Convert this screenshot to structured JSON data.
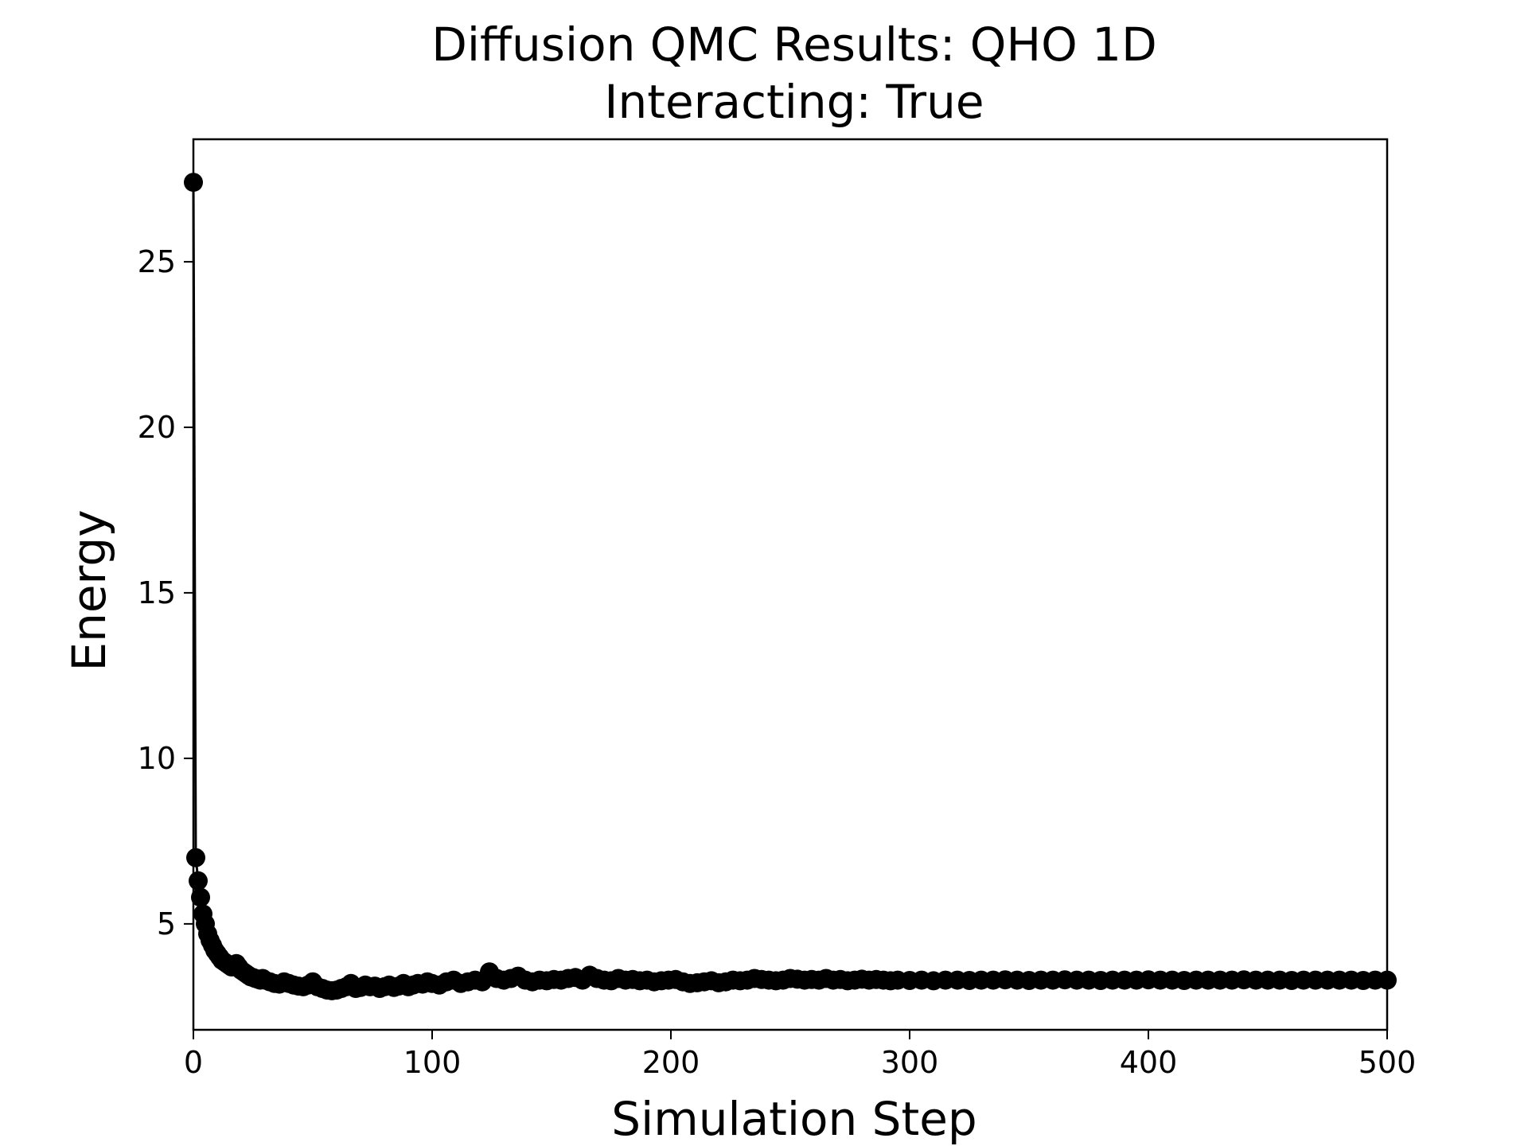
{
  "chart_data": {
    "type": "line",
    "title": "Diffusion QMC Results: QHO 1D",
    "subtitle": "Interacting: True",
    "xlabel": "Simulation Step",
    "ylabel": "Energy",
    "xlim": [
      0,
      500
    ],
    "ylim": [
      1.8,
      28.7
    ],
    "xticks": [
      0,
      100,
      200,
      300,
      400,
      500
    ],
    "xtick_labels": [
      "0",
      "100",
      "200",
      "300",
      "400",
      "500"
    ],
    "yticks": [
      5,
      10,
      15,
      20,
      25
    ],
    "ytick_labels": [
      "5",
      "10",
      "15",
      "20",
      "25"
    ],
    "grid": false,
    "marker": "circle",
    "color": "#000000",
    "series": [
      {
        "x": [
          0,
          1,
          2,
          3,
          4,
          5,
          6,
          7,
          8,
          9,
          10,
          11,
          12,
          13,
          14,
          15,
          16,
          17,
          18,
          19,
          20,
          21,
          22,
          23,
          24,
          25,
          26,
          27,
          28,
          29,
          30,
          32,
          34,
          36,
          38,
          40,
          42,
          44,
          46,
          48,
          50,
          52,
          54,
          56,
          58,
          60,
          62,
          64,
          66,
          68,
          70,
          72,
          74,
          76,
          78,
          80,
          82,
          84,
          86,
          88,
          90,
          92,
          94,
          96,
          98,
          100,
          103,
          106,
          109,
          112,
          115,
          118,
          121,
          124,
          127,
          130,
          133,
          136,
          139,
          142,
          145,
          148,
          151,
          154,
          157,
          160,
          163,
          166,
          169,
          172,
          175,
          178,
          181,
          184,
          187,
          190,
          193,
          196,
          199,
          202,
          205,
          208,
          211,
          214,
          217,
          220,
          223,
          226,
          229,
          232,
          235,
          238,
          241,
          244,
          247,
          250,
          253,
          256,
          259,
          262,
          265,
          268,
          271,
          274,
          277,
          280,
          283,
          286,
          289,
          292,
          295,
          300,
          305,
          310,
          315,
          320,
          325,
          330,
          335,
          340,
          345,
          350,
          355,
          360,
          365,
          370,
          375,
          380,
          385,
          390,
          395,
          400,
          405,
          410,
          415,
          420,
          425,
          430,
          435,
          440,
          445,
          450,
          455,
          460,
          465,
          470,
          475,
          480,
          485,
          490,
          495,
          500
        ],
        "y": [
          27.4,
          7.0,
          6.3,
          5.8,
          5.3,
          5.0,
          4.7,
          4.5,
          4.35,
          4.2,
          4.1,
          4.0,
          3.9,
          3.85,
          3.8,
          3.75,
          3.7,
          3.75,
          3.8,
          3.7,
          3.6,
          3.55,
          3.5,
          3.45,
          3.4,
          3.38,
          3.35,
          3.33,
          3.3,
          3.35,
          3.3,
          3.25,
          3.2,
          3.18,
          3.25,
          3.2,
          3.15,
          3.12,
          3.1,
          3.15,
          3.25,
          3.1,
          3.05,
          3.0,
          2.98,
          3.0,
          3.05,
          3.1,
          3.2,
          3.05,
          3.08,
          3.15,
          3.1,
          3.12,
          3.05,
          3.1,
          3.15,
          3.08,
          3.12,
          3.2,
          3.1,
          3.15,
          3.2,
          3.18,
          3.25,
          3.2,
          3.15,
          3.25,
          3.3,
          3.2,
          3.25,
          3.3,
          3.25,
          3.55,
          3.35,
          3.3,
          3.35,
          3.42,
          3.3,
          3.25,
          3.3,
          3.28,
          3.32,
          3.3,
          3.35,
          3.38,
          3.3,
          3.45,
          3.35,
          3.3,
          3.28,
          3.35,
          3.3,
          3.32,
          3.28,
          3.3,
          3.25,
          3.28,
          3.3,
          3.32,
          3.25,
          3.2,
          3.22,
          3.25,
          3.28,
          3.22,
          3.25,
          3.3,
          3.28,
          3.3,
          3.35,
          3.32,
          3.3,
          3.28,
          3.3,
          3.35,
          3.33,
          3.3,
          3.32,
          3.3,
          3.35,
          3.3,
          3.32,
          3.28,
          3.3,
          3.33,
          3.3,
          3.32,
          3.3,
          3.28,
          3.3,
          3.29,
          3.3,
          3.28,
          3.3,
          3.3,
          3.29,
          3.3,
          3.3,
          3.31,
          3.3,
          3.29,
          3.3,
          3.3,
          3.31,
          3.3,
          3.3,
          3.29,
          3.3,
          3.3,
          3.3,
          3.31,
          3.3,
          3.3,
          3.29,
          3.3,
          3.3,
          3.3,
          3.3,
          3.31,
          3.3,
          3.3,
          3.3,
          3.29,
          3.3,
          3.3,
          3.3,
          3.3,
          3.3,
          3.29,
          3.3,
          3.3
        ]
      }
    ]
  }
}
